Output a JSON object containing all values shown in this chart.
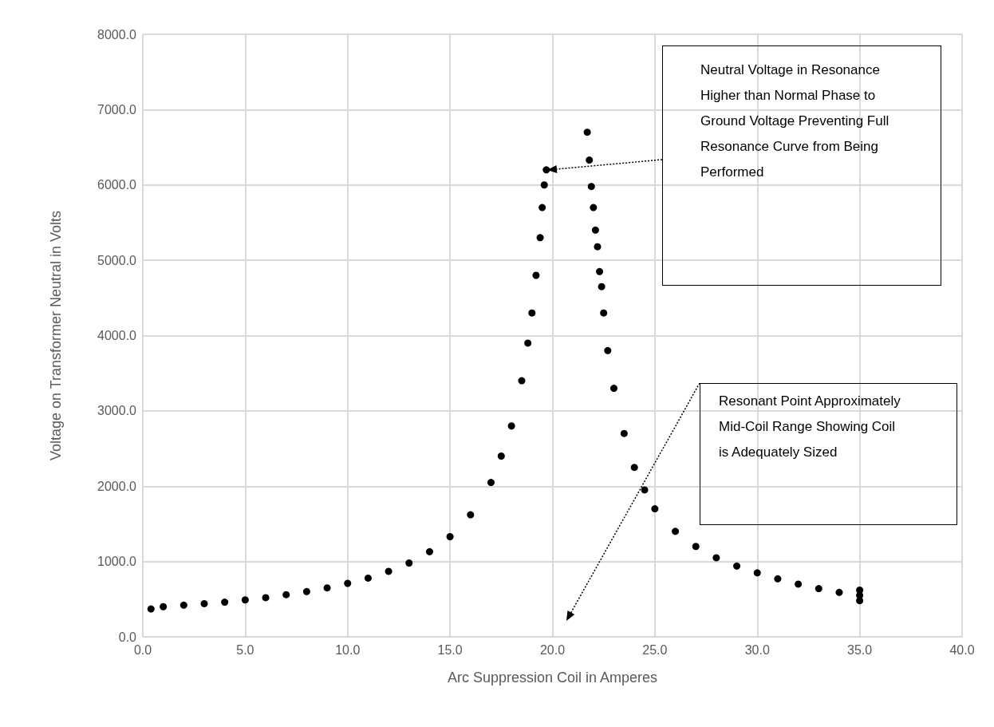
{
  "chart_data": {
    "type": "scatter",
    "xlabel": "Arc Suppression Coil in Amperes",
    "ylabel": "Voltage on Transformer Neutral in Volts",
    "xlim": [
      0,
      40
    ],
    "xticks": [
      {
        "value": 0,
        "label": "0.0"
      },
      {
        "value": 5,
        "label": "5.0"
      },
      {
        "value": 10,
        "label": "10.0"
      },
      {
        "value": 15,
        "label": "15.0"
      },
      {
        "value": 20,
        "label": "20.0"
      },
      {
        "value": 25,
        "label": "25.0"
      },
      {
        "value": 30,
        "label": "30.0"
      },
      {
        "value": 35,
        "label": "35.0"
      },
      {
        "value": 40,
        "label": "40.0"
      }
    ],
    "ylim": [
      0,
      8000
    ],
    "yticks": [
      {
        "value": 0,
        "label": "0.0"
      },
      {
        "value": 1000,
        "label": "1000.0"
      },
      {
        "value": 2000,
        "label": "2000.0"
      },
      {
        "value": 3000,
        "label": "3000.0"
      },
      {
        "value": 4000,
        "label": "4000.0"
      },
      {
        "value": 5000,
        "label": "5000.0"
      },
      {
        "value": 6000,
        "label": "6000.0"
      },
      {
        "value": 7000,
        "label": "7000.0"
      },
      {
        "value": 8000,
        "label": "8000.0"
      }
    ],
    "grid": true,
    "marker": "circle",
    "series": [
      {
        "color": "#000000",
        "x": [
          0.4,
          1,
          2,
          3,
          4,
          5,
          6,
          7,
          8,
          9,
          10,
          11,
          12,
          13,
          14,
          15,
          16,
          17,
          17.5,
          18,
          18.5,
          18.8,
          19.0,
          19.2,
          19.4,
          19.5,
          19.6,
          19.7,
          21.7,
          21.8,
          21.9,
          22.0,
          22.1,
          22.2,
          22.3,
          22.4,
          22.5,
          22.7,
          23.0,
          23.5,
          24,
          24.5,
          25,
          26,
          27,
          28,
          29,
          30,
          31,
          32,
          33,
          34,
          35,
          35,
          35
        ],
        "values": [
          370,
          400,
          420,
          440,
          460,
          490,
          520,
          560,
          600,
          650,
          710,
          780,
          870,
          980,
          1130,
          1330,
          1620,
          2050,
          2400,
          2800,
          3400,
          3900,
          4300,
          4800,
          5300,
          5700,
          6000,
          6200,
          6700,
          6330,
          5980,
          5700,
          5400,
          5180,
          4850,
          4650,
          4300,
          3800,
          3300,
          2700,
          2250,
          1950,
          1700,
          1400,
          1200,
          1050,
          940,
          850,
          770,
          700,
          640,
          590,
          550,
          480,
          620
        ]
      }
    ],
    "annotations": [
      "Neutral Voltage in Resonance Higher than Normal Phase to Ground Voltage Preventing Full Resonance Curve from Being Performed",
      "Resonant Point Approximately Mid-Coil Range Showing Coil is Adequately Sized"
    ]
  }
}
